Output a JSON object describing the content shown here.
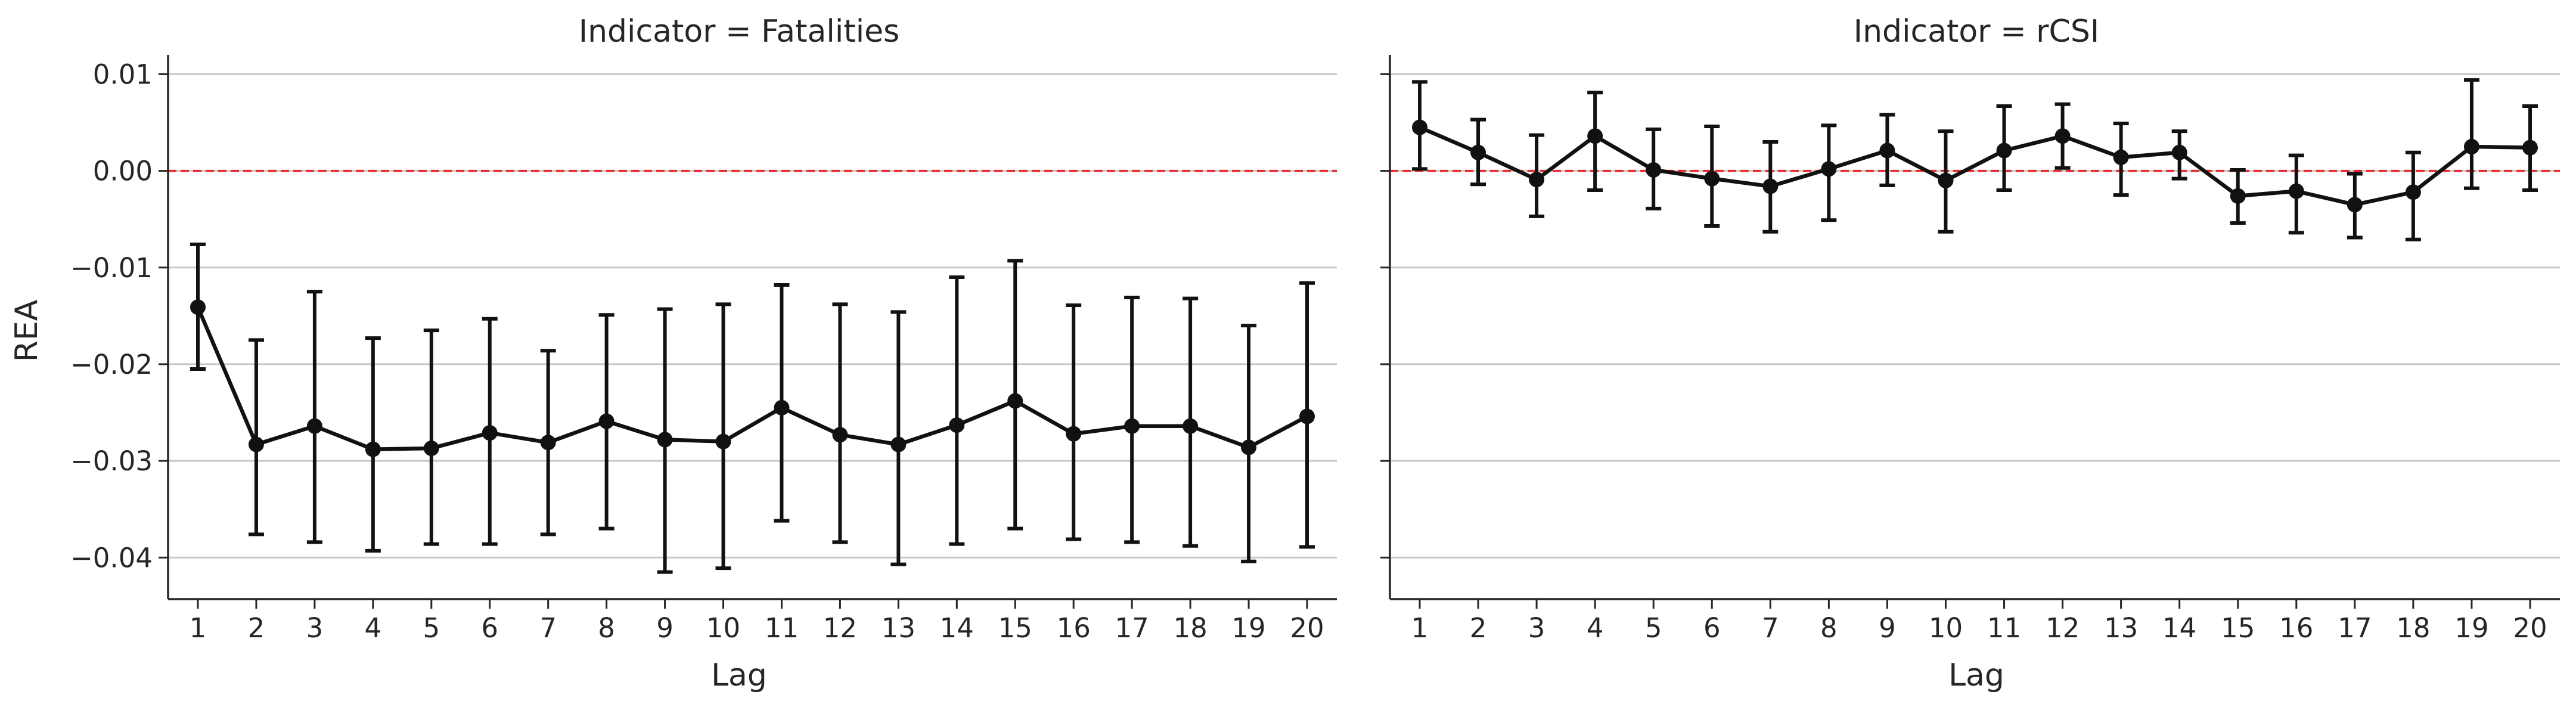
{
  "figure": {
    "y_label": "REA",
    "x_label": "Lag",
    "shared_y_ticks": [
      -0.04,
      -0.03,
      -0.02,
      -0.01,
      0.0,
      0.01
    ],
    "y_tick_labels": [
      "−0.04",
      "−0.03",
      "−0.02",
      "−0.01",
      "0.00",
      "0.01"
    ],
    "reference_line": {
      "y": 0,
      "color": "#e8262b",
      "style": "dashed"
    },
    "grid": "horizontal",
    "series_color": "#111111"
  },
  "chart_data": [
    {
      "type": "line",
      "title": "Indicator = Fatalities",
      "xlabel": "Lag",
      "ylabel": "REA",
      "ylim": [
        -0.0443,
        0.012
      ],
      "x": [
        1,
        2,
        3,
        4,
        5,
        6,
        7,
        8,
        9,
        10,
        11,
        12,
        13,
        14,
        15,
        16,
        17,
        18,
        19,
        20
      ],
      "series": [
        {
          "values": [
            -0.0141,
            -0.0283,
            -0.0264,
            -0.0288,
            -0.0287,
            -0.0271,
            -0.0281,
            -0.0259,
            -0.0278,
            -0.028,
            -0.0245,
            -0.0273,
            -0.0283,
            -0.0263,
            -0.0238,
            -0.0272,
            -0.0264,
            -0.0264,
            -0.0286,
            -0.0254
          ],
          "error_low": [
            -0.0205,
            -0.0376,
            -0.0384,
            -0.0393,
            -0.0386,
            -0.0386,
            -0.0376,
            -0.037,
            -0.0415,
            -0.0411,
            -0.0362,
            -0.0384,
            -0.0407,
            -0.0386,
            -0.037,
            -0.0381,
            -0.0384,
            -0.0388,
            -0.0404,
            -0.0389
          ],
          "error_high": [
            -0.0076,
            -0.0175,
            -0.0125,
            -0.0173,
            -0.0165,
            -0.0153,
            -0.0186,
            -0.0149,
            -0.0143,
            -0.0138,
            -0.0118,
            -0.0138,
            -0.0146,
            -0.011,
            -0.0093,
            -0.0139,
            -0.0131,
            -0.0132,
            -0.016,
            -0.0116
          ]
        }
      ],
      "show_y_tick_labels": true
    },
    {
      "type": "line",
      "title": "Indicator = rCSI",
      "xlabel": "Lag",
      "ylabel": "",
      "ylim": [
        -0.0443,
        0.012
      ],
      "x": [
        1,
        2,
        3,
        4,
        5,
        6,
        7,
        8,
        9,
        10,
        11,
        12,
        13,
        14,
        15,
        16,
        17,
        18,
        19,
        20
      ],
      "series": [
        {
          "values": [
            0.0045,
            0.0019,
            -0.0009,
            0.0036,
            0.0001,
            -0.0008,
            -0.0016,
            0.0002,
            0.0021,
            -0.001,
            0.0021,
            0.0036,
            0.0014,
            0.0019,
            -0.0026,
            -0.0021,
            -0.0035,
            -0.0022,
            0.0025,
            0.0024
          ],
          "error_low": [
            0.0002,
            -0.0014,
            -0.0047,
            -0.002,
            -0.0039,
            -0.0057,
            -0.0063,
            -0.0051,
            -0.0015,
            -0.0063,
            -0.002,
            0.0003,
            -0.0025,
            -0.0008,
            -0.0054,
            -0.0064,
            -0.0069,
            -0.0071,
            -0.0018,
            -0.002
          ],
          "error_high": [
            0.0092,
            0.0053,
            0.0037,
            0.0081,
            0.0043,
            0.0046,
            0.003,
            0.0047,
            0.0058,
            0.0041,
            0.0067,
            0.0069,
            0.0049,
            0.0041,
            0.0001,
            0.0016,
            -0.0003,
            0.0019,
            0.0094,
            0.0067
          ]
        }
      ],
      "show_y_tick_labels": false
    }
  ]
}
